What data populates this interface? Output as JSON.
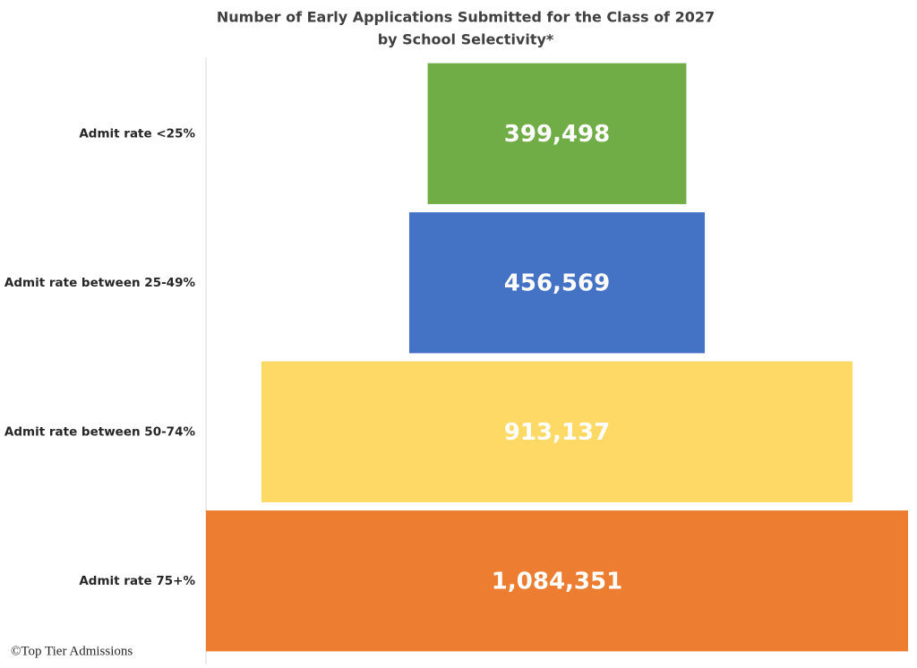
{
  "chart_data": {
    "type": "funnel",
    "title": [
      "Number of Early Applications Submitted for the Class of 2027",
      "by School Selectivity*"
    ],
    "categories": [
      "Admit rate <25%",
      "Admit rate between 25-49%",
      "Admit rate between 50-74%",
      "Admit rate 75+%"
    ],
    "values": [
      399498,
      456569,
      913137,
      1084351
    ],
    "value_labels": [
      "399,498",
      "456,569",
      "913,137",
      "1,084,351"
    ],
    "colors": [
      "#70ad47",
      "#4472c4",
      "#ffd966",
      "#ed7d31"
    ],
    "source": "©Top Tier Admissions"
  }
}
